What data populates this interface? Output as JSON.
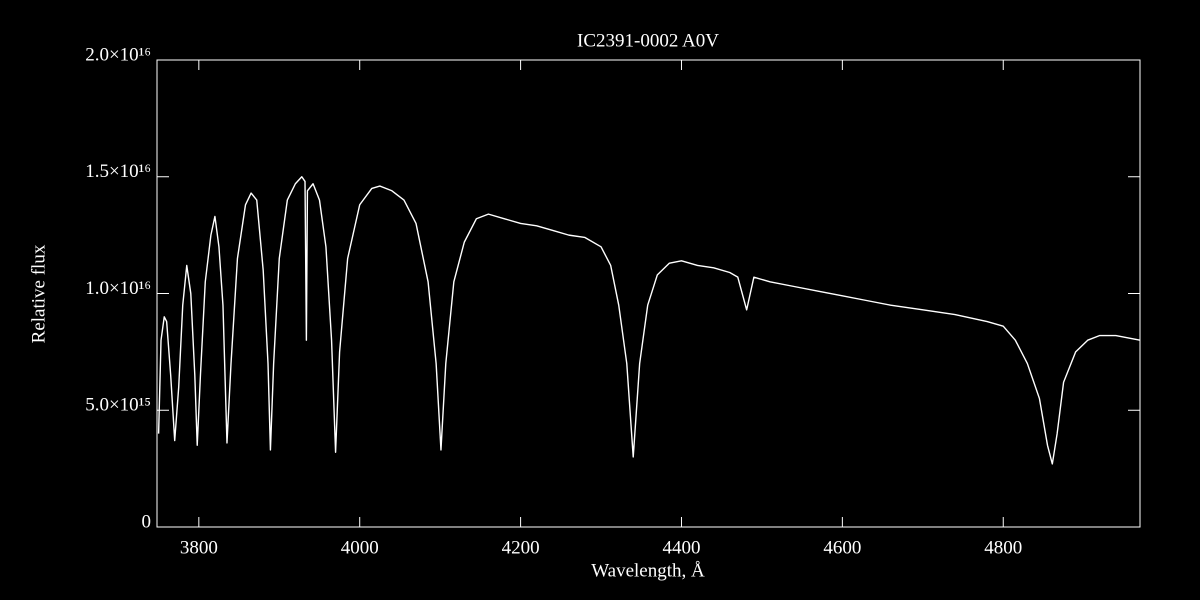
{
  "chart_data": {
    "type": "line",
    "title": "IC2391-0002  A0V",
    "xlabel": "Wavelength, Å",
    "ylabel": "Relative flux",
    "color": "#ffffff",
    "xlim": [
      3748,
      4970
    ],
    "ylim": [
      0,
      2e+16
    ],
    "xticks": [
      3800,
      4000,
      4200,
      4400,
      4600,
      4800
    ],
    "yticks": [
      0,
      {
        "value": 5000000000000000.0,
        "label": "5.0×10¹⁵"
      },
      {
        "value": 1e+16,
        "label": "1.0×10¹⁶"
      },
      {
        "value": 1.5e+16,
        "label": "1.5×10¹⁶"
      },
      {
        "value": 2e+16,
        "label": "2.0×10¹⁶"
      }
    ],
    "x": [
      3750,
      3753,
      3757,
      3760,
      3765,
      3770,
      3775,
      3780,
      3785,
      3790,
      3795,
      3798,
      3802,
      3808,
      3815,
      3820,
      3825,
      3830,
      3835,
      3840,
      3848,
      3858,
      3865,
      3872,
      3880,
      3886,
      3889,
      3893,
      3900,
      3910,
      3920,
      3928,
      3932,
      3933.7,
      3935,
      3942,
      3950,
      3958,
      3965,
      3970,
      3975,
      3985,
      4000,
      4015,
      4025,
      4040,
      4055,
      4070,
      4085,
      4095,
      4101,
      4107,
      4117,
      4130,
      4145,
      4160,
      4180,
      4200,
      4220,
      4240,
      4260,
      4280,
      4300,
      4312,
      4322,
      4332,
      4340,
      4348,
      4358,
      4370,
      4385,
      4400,
      4420,
      4440,
      4460,
      4470,
      4481,
      4490,
      4510,
      4540,
      4570,
      4600,
      4630,
      4660,
      4700,
      4740,
      4780,
      4800,
      4815,
      4830,
      4845,
      4855,
      4861,
      4867,
      4875,
      4890,
      4905,
      4920,
      4940,
      4970
    ],
    "values": [
      4000000000000000.0,
      8000000000000000.0,
      9000000000000000.0,
      8800000000000000.0,
      6500000000000000.0,
      3700000000000000.0,
      6000000000000000.0,
      9500000000000000.0,
      1.12e+16,
      1e+16,
      6500000000000000.0,
      3500000000000000.0,
      6500000000000000.0,
      1.05e+16,
      1.25e+16,
      1.33e+16,
      1.2e+16,
      9500000000000000.0,
      3600000000000000.0,
      7000000000000000.0,
      1.15e+16,
      1.38e+16,
      1.43e+16,
      1.4e+16,
      1.1e+16,
      7000000000000000.0,
      3300000000000000.0,
      7000000000000000.0,
      1.15e+16,
      1.4e+16,
      1.47e+16,
      1.5e+16,
      1.48e+16,
      8000000000000000.0,
      1.44e+16,
      1.47e+16,
      1.4e+16,
      1.2e+16,
      8000000000000000.0,
      3200000000000000.0,
      7500000000000000.0,
      1.15e+16,
      1.38e+16,
      1.45e+16,
      1.46e+16,
      1.44e+16,
      1.4e+16,
      1.3e+16,
      1.05e+16,
      7000000000000000.0,
      3300000000000000.0,
      7000000000000000.0,
      1.05e+16,
      1.22e+16,
      1.32e+16,
      1.34e+16,
      1.32e+16,
      1.3e+16,
      1.29e+16,
      1.27e+16,
      1.25e+16,
      1.24e+16,
      1.2e+16,
      1.12e+16,
      9500000000000000.0,
      7000000000000000.0,
      3000000000000000.0,
      7000000000000000.0,
      9500000000000000.0,
      1.08e+16,
      1.13e+16,
      1.14e+16,
      1.12e+16,
      1.11e+16,
      1.09e+16,
      1.07e+16,
      9300000000000000.0,
      1.07e+16,
      1.05e+16,
      1.03e+16,
      1.01e+16,
      9900000000000000.0,
      9700000000000000.0,
      9500000000000000.0,
      9300000000000000.0,
      9100000000000000.0,
      8800000000000000.0,
      8600000000000000.0,
      8000000000000000.0,
      7000000000000000.0,
      5500000000000000.0,
      3500000000000000.0,
      2700000000000000.0,
      4000000000000000.0,
      6200000000000000.0,
      7500000000000000.0,
      8000000000000000.0,
      8200000000000000.0,
      8200000000000000.0,
      8000000000000000.0
    ]
  }
}
